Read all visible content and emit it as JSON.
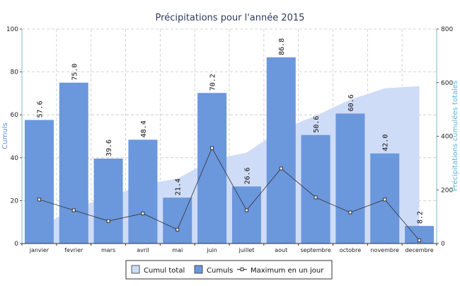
{
  "chart_data": {
    "type": "bar",
    "title": "Précipitations pour l'année 2015",
    "ylabel": "Cumuls",
    "ylabel_right": "Précipitations cumulées totales",
    "ylim": [
      0,
      100
    ],
    "ylim_right": [
      0,
      800
    ],
    "yticks": [
      "0",
      "20",
      "40",
      "60",
      "80",
      "100"
    ],
    "yticks_right": [
      "0",
      "200",
      "400",
      "600",
      "800"
    ],
    "grid": true,
    "legend_position": "bottom",
    "categories": [
      "janvier",
      "fevrier",
      "mars",
      "avril",
      "mai",
      "juin",
      "juillet",
      "aout",
      "septembre",
      "octobre",
      "novembre",
      "decembre"
    ],
    "series": [
      {
        "name": "Cumul total",
        "type": "area",
        "axis": "right",
        "color": "#cfdcf7",
        "values": [
          57.6,
          132.6,
          172.2,
          220.6,
          242.0,
          312.2,
          338.8,
          425.6,
          476.2,
          536.8,
          578.8,
          587.0
        ]
      },
      {
        "name": "Cumuls",
        "type": "bar",
        "axis": "left",
        "color": "#6b97dc",
        "values": [
          57.6,
          75.0,
          39.6,
          48.4,
          21.4,
          70.2,
          26.6,
          86.8,
          50.6,
          60.6,
          42.0,
          8.2
        ],
        "labels": [
          "57.6",
          "75.0",
          "39.6",
          "48.4",
          "21.4",
          "70.2",
          "26.6",
          "86.8",
          "50.6",
          "60.6",
          "42.0",
          "8.2"
        ]
      },
      {
        "name": "Maximum en un jour",
        "type": "line",
        "axis": "left",
        "color": "#333333",
        "values": [
          20.5,
          15.5,
          10.5,
          14.0,
          6.5,
          44.5,
          15.5,
          35.0,
          21.5,
          14.5,
          20.5,
          1.5
        ]
      }
    ]
  }
}
